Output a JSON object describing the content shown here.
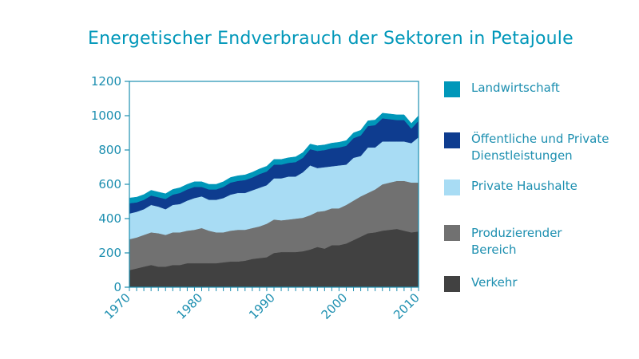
{
  "chart_data": {
    "type": "area",
    "stacked": true,
    "title": "Energetischer Endverbrauch der Sektoren in Petajoule",
    "xlabel": "",
    "ylabel": "",
    "xlim": [
      1970,
      2010
    ],
    "ylim": [
      0,
      1200
    ],
    "x_ticks": [
      "1970",
      "1980",
      "1990",
      "2000",
      "2010"
    ],
    "y_ticks": [
      "0",
      "200",
      "400",
      "600",
      "800",
      "1000",
      "1200"
    ],
    "grid": false,
    "legend_position": "right",
    "x": [
      1970,
      1971,
      1972,
      1973,
      1974,
      1975,
      1976,
      1977,
      1978,
      1979,
      1980,
      1981,
      1982,
      1983,
      1984,
      1985,
      1986,
      1987,
      1988,
      1989,
      1990,
      1991,
      1992,
      1993,
      1994,
      1995,
      1996,
      1997,
      1998,
      1999,
      2000,
      2001,
      2002,
      2003,
      2004,
      2005,
      2006,
      2007,
      2008,
      2009,
      2010
    ],
    "series": [
      {
        "name": "Verkehr",
        "color": "#414141",
        "values": [
          100,
          110,
          120,
          130,
          120,
          120,
          130,
          130,
          140,
          140,
          140,
          140,
          140,
          145,
          150,
          150,
          155,
          165,
          170,
          175,
          200,
          205,
          205,
          205,
          210,
          220,
          235,
          225,
          245,
          245,
          255,
          275,
          295,
          315,
          320,
          330,
          335,
          340,
          330,
          320,
          325
        ]
      },
      {
        "name": "Produzierender Bereich",
        "color": "#717171",
        "values": [
          180,
          180,
          185,
          190,
          195,
          185,
          190,
          190,
          190,
          195,
          205,
          190,
          180,
          175,
          180,
          185,
          180,
          180,
          185,
          195,
          195,
          185,
          190,
          195,
          195,
          200,
          205,
          220,
          215,
          215,
          225,
          230,
          235,
          235,
          250,
          270,
          275,
          280,
          290,
          290,
          285
        ]
      },
      {
        "name": "Private Haushalte",
        "color": "#a8dcf4",
        "values": [
          150,
          150,
          150,
          160,
          155,
          150,
          160,
          165,
          175,
          185,
          185,
          180,
          190,
          200,
          210,
          215,
          215,
          220,
          225,
          225,
          240,
          245,
          250,
          245,
          265,
          290,
          255,
          255,
          245,
          250,
          235,
          250,
          235,
          265,
          245,
          250,
          240,
          230,
          230,
          230,
          265
        ]
      },
      {
        "name": "Öffentliche und Private Dienstleistungen",
        "color": "#0e3c8f",
        "values": [
          60,
          55,
          55,
          55,
          55,
          60,
          60,
          65,
          65,
          65,
          55,
          60,
          60,
          65,
          70,
          70,
          75,
          75,
          80,
          80,
          80,
          80,
          80,
          85,
          85,
          95,
          100,
          100,
          105,
          105,
          110,
          115,
          120,
          125,
          130,
          135,
          130,
          125,
          125,
          85,
          95
        ]
      },
      {
        "name": "Landwirtschaft",
        "color": "#0097b9",
        "values": [
          30,
          30,
          30,
          30,
          30,
          30,
          30,
          30,
          30,
          30,
          30,
          30,
          30,
          30,
          30,
          30,
          30,
          30,
          30,
          30,
          30,
          30,
          30,
          30,
          30,
          30,
          30,
          30,
          30,
          30,
          30,
          30,
          30,
          30,
          30,
          30,
          30,
          30,
          30,
          30,
          30
        ]
      }
    ]
  },
  "legend": {
    "items": [
      {
        "lines": [
          "Landwirtschaft"
        ],
        "color": "#0097b9"
      },
      {
        "lines": [
          "Öffentliche und Private",
          "Dienstleistungen"
        ],
        "color": "#0e3c8f"
      },
      {
        "lines": [
          "Private Haushalte"
        ],
        "color": "#a8dcf4"
      },
      {
        "lines": [
          "Produzierender",
          "Bereich"
        ],
        "color": "#717171"
      },
      {
        "lines": [
          "Verkehr"
        ],
        "color": "#414141"
      }
    ]
  },
  "colors": {
    "axis": "#1d8fb0",
    "text": "#1d8fb0",
    "title": "#0097b9"
  }
}
